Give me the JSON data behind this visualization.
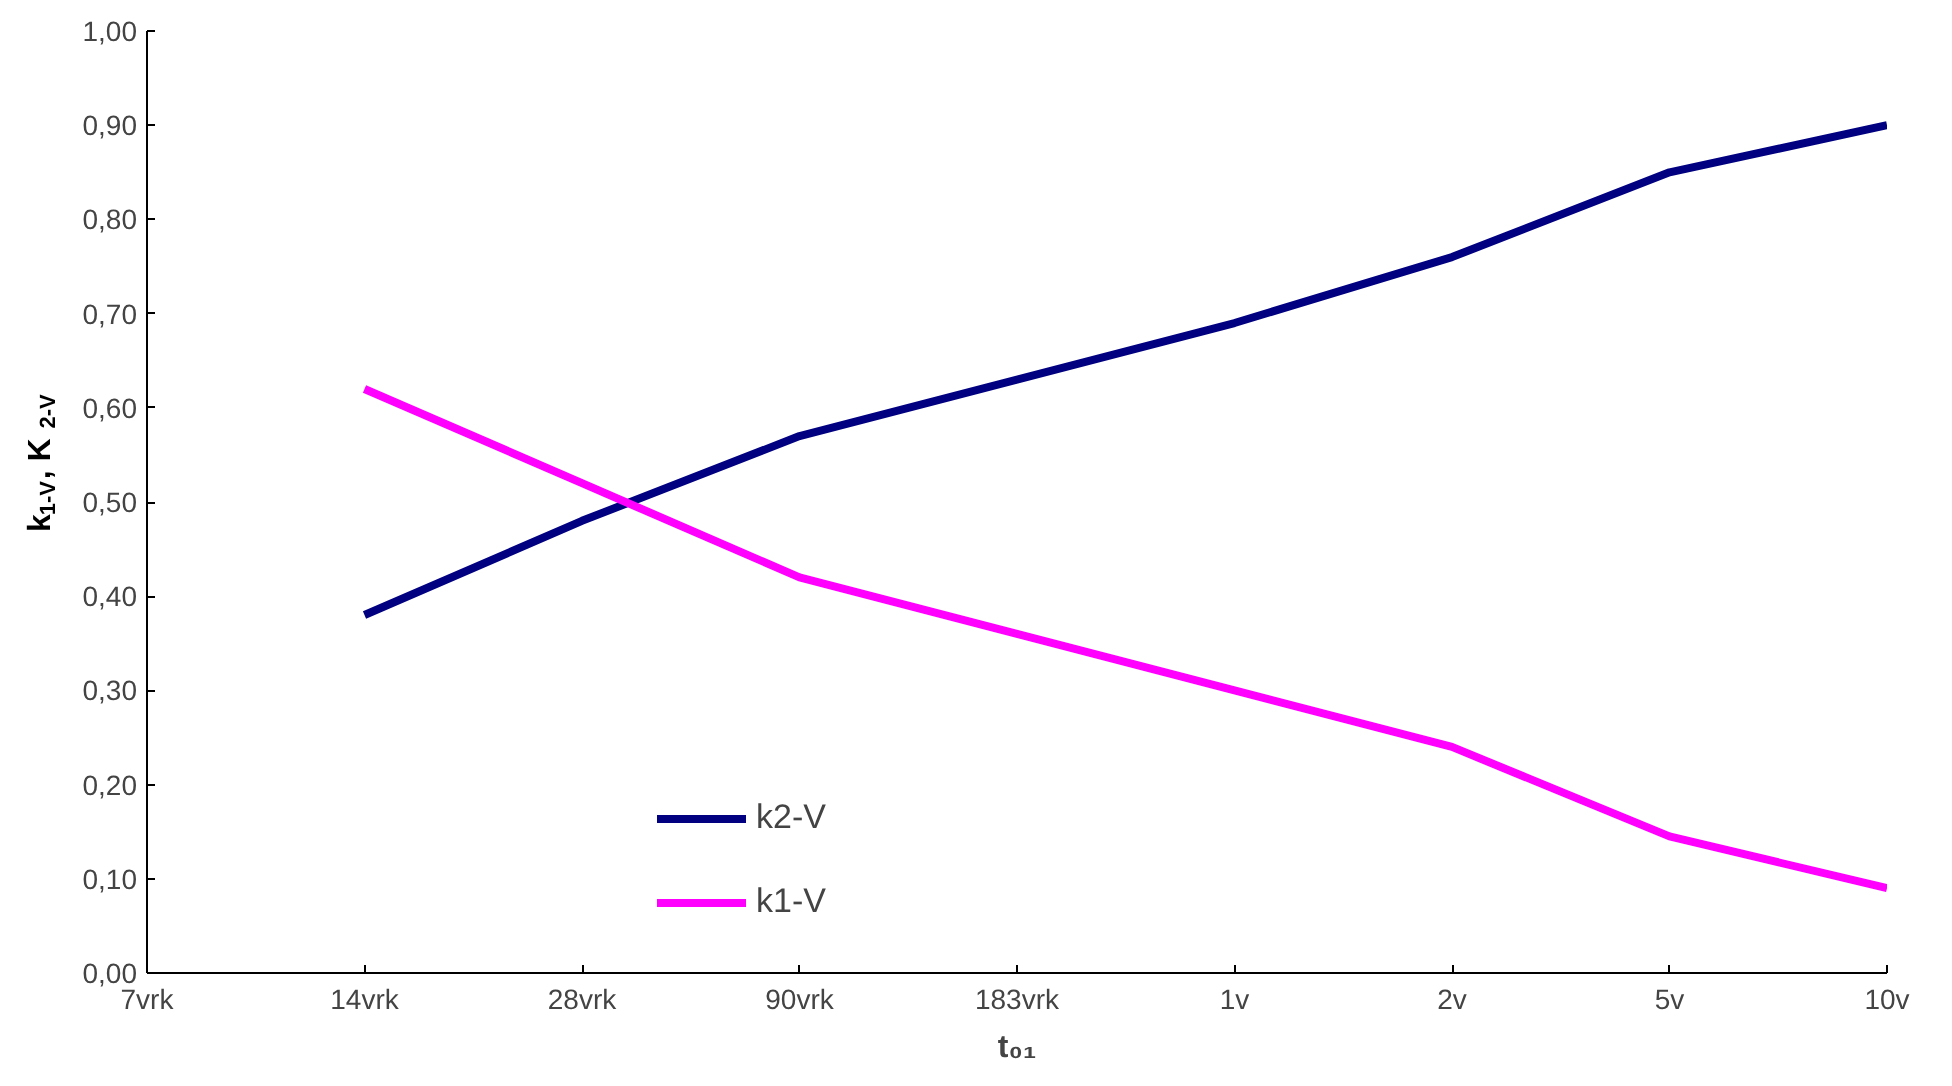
{
  "chart_data": {
    "type": "line",
    "xlabel": "t₀₁",
    "ylabel": "k$_{1-V}$, K$_{2-V}$",
    "categories": [
      "7vrk",
      "14vrk",
      "28vrk",
      "90vrk",
      "183vrk",
      "1v",
      "2v",
      "5v",
      "10v"
    ],
    "series": [
      {
        "name": "k2-V",
        "color": "#000080",
        "values": [
          null,
          0.38,
          0.48,
          0.57,
          0.63,
          0.69,
          0.76,
          0.85,
          0.9
        ]
      },
      {
        "name": "k1-V",
        "color": "#ff00ff",
        "values": [
          null,
          0.62,
          0.52,
          0.42,
          0.36,
          0.3,
          0.24,
          0.145,
          0.09
        ]
      }
    ],
    "ylim": [
      0,
      1
    ],
    "yticks": [
      {
        "value": 0,
        "label": "0,00"
      },
      {
        "value": 0.1,
        "label": "0,10"
      },
      {
        "value": 0.2,
        "label": "0,20"
      },
      {
        "value": 0.3,
        "label": "0,30"
      },
      {
        "value": 0.4,
        "label": "0,40"
      },
      {
        "value": 0.5,
        "label": "0,50"
      },
      {
        "value": 0.6,
        "label": "0,60"
      },
      {
        "value": 0.7,
        "label": "0,70"
      },
      {
        "value": 0.8,
        "label": "0,80"
      },
      {
        "value": 0.9,
        "label": "0,90"
      },
      {
        "value": 1,
        "label": "1,00"
      }
    ],
    "grid": false,
    "legend": "bottom left",
    "marker": "none",
    "line_style": "solid"
  }
}
